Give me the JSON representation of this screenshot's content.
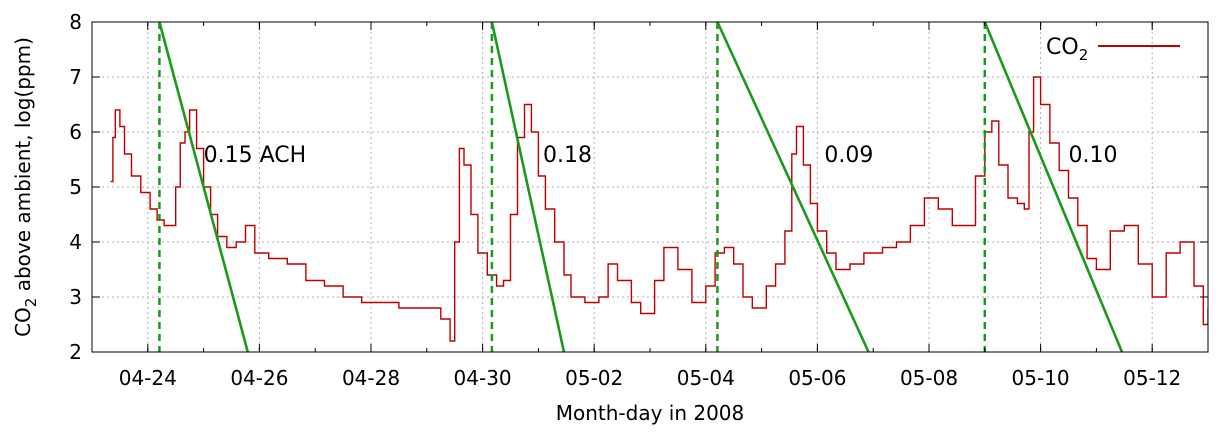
{
  "chart_data": {
    "type": "line",
    "title": "",
    "xlabel": "Month-day in 2008",
    "ylabel": "CO₂ above ambient, log(ppm)",
    "ylabel_main": "CO",
    "ylabel_sub": "2",
    "ylabel_rest": " above ambient, log(ppm)",
    "xlim": [
      "2008-04-23 00:00",
      "2008-05-13 00:00"
    ],
    "ylim": [
      2,
      8
    ],
    "grid": true,
    "legend_position": "top-right",
    "x_ticks": [
      {
        "date": "2008-04-24",
        "label": "04-24"
      },
      {
        "date": "2008-04-26",
        "label": "04-26"
      },
      {
        "date": "2008-04-28",
        "label": "04-28"
      },
      {
        "date": "2008-04-30",
        "label": "04-30"
      },
      {
        "date": "2008-05-02",
        "label": "05-02"
      },
      {
        "date": "2008-05-04",
        "label": "05-04"
      },
      {
        "date": "2008-05-06",
        "label": "05-06"
      },
      {
        "date": "2008-05-08",
        "label": "05-08"
      },
      {
        "date": "2008-05-10",
        "label": "05-10"
      },
      {
        "date": "2008-05-12",
        "label": "05-12"
      }
    ],
    "y_ticks": [
      2,
      3,
      4,
      5,
      6,
      7,
      8
    ],
    "series": [
      {
        "name": "CO2",
        "legend_main": "CO",
        "legend_sub": "2",
        "color": "#c00000",
        "points": [
          [
            "2008-04-23 08:00",
            5.1
          ],
          [
            "2008-04-23 09:00",
            5.9
          ],
          [
            "2008-04-23 10:00",
            6.4
          ],
          [
            "2008-04-23 12:00",
            6.1
          ],
          [
            "2008-04-23 14:00",
            5.6
          ],
          [
            "2008-04-23 17:00",
            5.2
          ],
          [
            "2008-04-23 21:00",
            4.9
          ],
          [
            "2008-04-24 01:00",
            4.6
          ],
          [
            "2008-04-24 04:00",
            4.4
          ],
          [
            "2008-04-24 07:00",
            4.3
          ],
          [
            "2008-04-24 10:00",
            4.3
          ],
          [
            "2008-04-24 12:00",
            5.0
          ],
          [
            "2008-04-24 14:00",
            5.8
          ],
          [
            "2008-04-24 16:00",
            6.0
          ],
          [
            "2008-04-24 18:00",
            6.4
          ],
          [
            "2008-04-24 21:00",
            5.7
          ],
          [
            "2008-04-25 00:00",
            5.0
          ],
          [
            "2008-04-25 03:00",
            4.5
          ],
          [
            "2008-04-25 06:00",
            4.1
          ],
          [
            "2008-04-25 10:00",
            3.9
          ],
          [
            "2008-04-25 14:00",
            4.0
          ],
          [
            "2008-04-25 18:00",
            4.3
          ],
          [
            "2008-04-25 22:00",
            3.8
          ],
          [
            "2008-04-26 04:00",
            3.7
          ],
          [
            "2008-04-26 12:00",
            3.6
          ],
          [
            "2008-04-26 20:00",
            3.3
          ],
          [
            "2008-04-27 04:00",
            3.2
          ],
          [
            "2008-04-27 12:00",
            3.0
          ],
          [
            "2008-04-27 20:00",
            2.9
          ],
          [
            "2008-04-28 12:00",
            2.8
          ],
          [
            "2008-04-29 00:00",
            2.8
          ],
          [
            "2008-04-29 06:00",
            2.6
          ],
          [
            "2008-04-29 10:00",
            2.2
          ],
          [
            "2008-04-29 12:00",
            4.0
          ],
          [
            "2008-04-29 14:00",
            5.7
          ],
          [
            "2008-04-29 16:00",
            5.4
          ],
          [
            "2008-04-29 19:00",
            4.5
          ],
          [
            "2008-04-29 22:00",
            3.8
          ],
          [
            "2008-04-30 02:00",
            3.4
          ],
          [
            "2008-04-30 06:00",
            3.2
          ],
          [
            "2008-04-30 09:00",
            3.3
          ],
          [
            "2008-04-30 12:00",
            4.5
          ],
          [
            "2008-04-30 15:00",
            5.9
          ],
          [
            "2008-04-30 18:00",
            6.5
          ],
          [
            "2008-04-30 21:00",
            6.0
          ],
          [
            "2008-05-01 00:00",
            5.2
          ],
          [
            "2008-05-01 03:00",
            4.6
          ],
          [
            "2008-05-01 07:00",
            4.0
          ],
          [
            "2008-05-01 11:00",
            3.4
          ],
          [
            "2008-05-01 14:00",
            3.0
          ],
          [
            "2008-05-01 20:00",
            2.9
          ],
          [
            "2008-05-02 02:00",
            3.0
          ],
          [
            "2008-05-02 06:00",
            3.6
          ],
          [
            "2008-05-02 10:00",
            3.3
          ],
          [
            "2008-05-02 16:00",
            2.9
          ],
          [
            "2008-05-02 20:00",
            2.7
          ],
          [
            "2008-05-03 02:00",
            3.3
          ],
          [
            "2008-05-03 06:00",
            3.9
          ],
          [
            "2008-05-03 12:00",
            3.5
          ],
          [
            "2008-05-03 18:00",
            2.9
          ],
          [
            "2008-05-04 00:00",
            3.2
          ],
          [
            "2008-05-04 04:00",
            3.8
          ],
          [
            "2008-05-04 08:00",
            3.9
          ],
          [
            "2008-05-04 12:00",
            3.6
          ],
          [
            "2008-05-04 16:00",
            3.0
          ],
          [
            "2008-05-04 20:00",
            2.8
          ],
          [
            "2008-05-05 02:00",
            3.2
          ],
          [
            "2008-05-05 06:00",
            3.6
          ],
          [
            "2008-05-05 10:00",
            4.2
          ],
          [
            "2008-05-05 13:00",
            5.6
          ],
          [
            "2008-05-05 15:00",
            6.1
          ],
          [
            "2008-05-05 18:00",
            5.4
          ],
          [
            "2008-05-05 21:00",
            4.7
          ],
          [
            "2008-05-06 00:00",
            4.2
          ],
          [
            "2008-05-06 04:00",
            3.8
          ],
          [
            "2008-05-06 08:00",
            3.5
          ],
          [
            "2008-05-06 14:00",
            3.6
          ],
          [
            "2008-05-06 20:00",
            3.8
          ],
          [
            "2008-05-07 04:00",
            3.9
          ],
          [
            "2008-05-07 10:00",
            4.0
          ],
          [
            "2008-05-07 16:00",
            4.3
          ],
          [
            "2008-05-07 22:00",
            4.8
          ],
          [
            "2008-05-08 04:00",
            4.6
          ],
          [
            "2008-05-08 10:00",
            4.3
          ],
          [
            "2008-05-08 16:00",
            4.3
          ],
          [
            "2008-05-08 20:00",
            5.2
          ],
          [
            "2008-05-09 00:00",
            6.0
          ],
          [
            "2008-05-09 03:00",
            6.2
          ],
          [
            "2008-05-09 06:00",
            5.4
          ],
          [
            "2008-05-09 10:00",
            4.8
          ],
          [
            "2008-05-09 14:00",
            4.7
          ],
          [
            "2008-05-09 17:00",
            4.6
          ],
          [
            "2008-05-09 19:00",
            6.0
          ],
          [
            "2008-05-09 21:00",
            7.0
          ],
          [
            "2008-05-10 00:00",
            6.5
          ],
          [
            "2008-05-10 04:00",
            5.8
          ],
          [
            "2008-05-10 08:00",
            5.3
          ],
          [
            "2008-05-10 12:00",
            4.8
          ],
          [
            "2008-05-10 16:00",
            4.3
          ],
          [
            "2008-05-10 20:00",
            3.7
          ],
          [
            "2008-05-11 00:00",
            3.5
          ],
          [
            "2008-05-11 06:00",
            4.2
          ],
          [
            "2008-05-11 12:00",
            4.3
          ],
          [
            "2008-05-11 18:00",
            3.6
          ],
          [
            "2008-05-12 00:00",
            3.0
          ],
          [
            "2008-05-12 06:00",
            3.8
          ],
          [
            "2008-05-12 12:00",
            4.0
          ],
          [
            "2008-05-12 18:00",
            3.2
          ],
          [
            "2008-05-12 22:00",
            2.5
          ],
          [
            "2008-05-13 00:00",
            2.8
          ]
        ]
      }
    ],
    "decay_fits": [
      {
        "label": "0.15 ACH",
        "color": "#1a9a1a",
        "start": [
          "2008-04-24 05:00",
          8
        ],
        "end": [
          "2008-04-25 19:00",
          2
        ],
        "label_at": [
          "2008-04-25 00:00",
          5.6
        ],
        "vline_date": "2008-04-24 05:00"
      },
      {
        "label": "0.18",
        "color": "#1a9a1a",
        "start": [
          "2008-04-30 04:00",
          8
        ],
        "end": [
          "2008-05-01 11:00",
          2
        ],
        "label_at": [
          "2008-05-01 02:00",
          5.6
        ],
        "vline_date": "2008-04-30 04:00"
      },
      {
        "label": "0.09",
        "color": "#1a9a1a",
        "start": [
          "2008-05-04 05:00",
          8
        ],
        "end": [
          "2008-05-06 22:00",
          2
        ],
        "label_at": [
          "2008-05-06 03:00",
          5.6
        ],
        "vline_date": "2008-05-04 05:00"
      },
      {
        "label": "0.10",
        "color": "#1a9a1a",
        "start": [
          "2008-05-09 00:00",
          8
        ],
        "end": [
          "2008-05-11 11:00",
          2
        ],
        "label_at": [
          "2008-05-10 12:00",
          5.6
        ],
        "vline_date": "2008-05-09 00:00"
      }
    ]
  }
}
